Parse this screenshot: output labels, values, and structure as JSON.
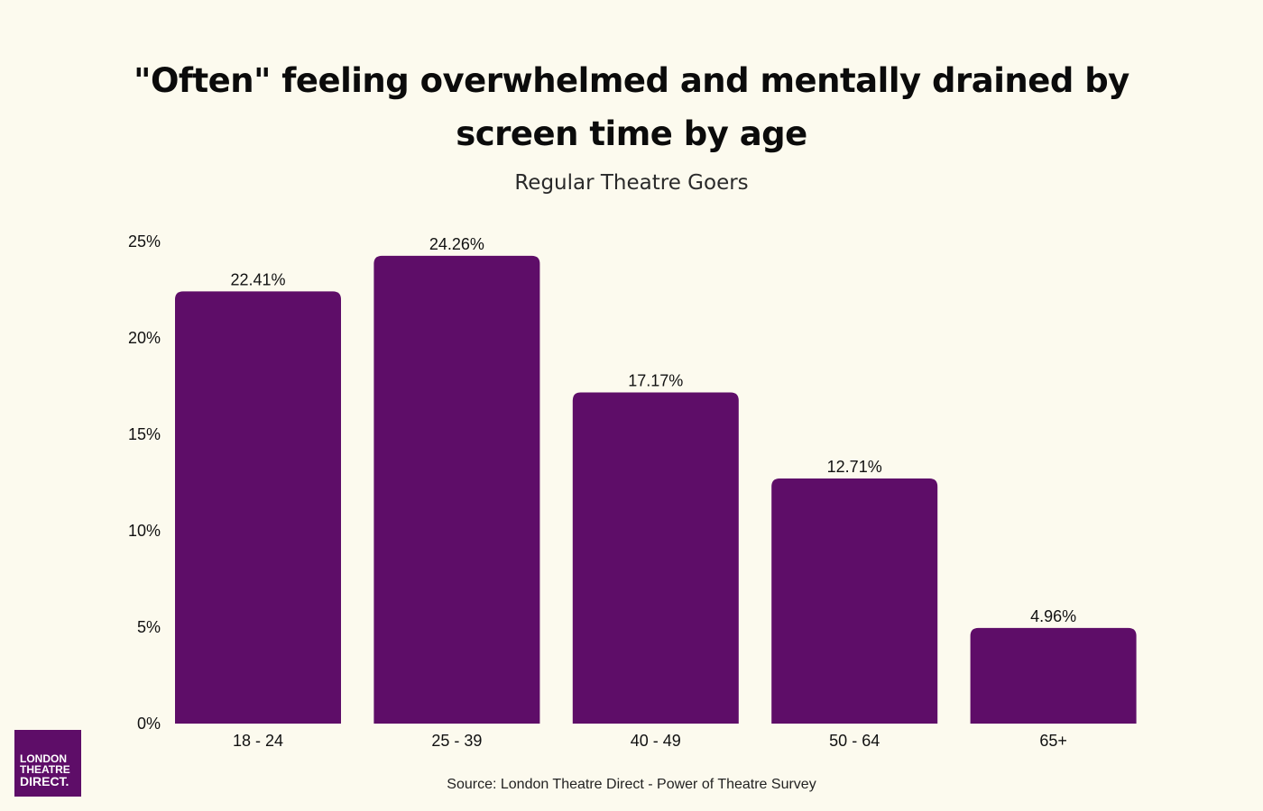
{
  "chart_data": {
    "type": "bar",
    "title": "\"Often\" feeling overwhelmed and mentally drained by screen time by age",
    "subtitle": "Regular Theatre Goers",
    "categories": [
      "18 - 24",
      "25 - 39",
      "40 - 49",
      "50 - 64",
      "65+"
    ],
    "values": [
      22.41,
      24.26,
      17.17,
      12.71,
      4.96
    ],
    "data_labels": [
      "22.41%",
      "24.26%",
      "17.17%",
      "12.71%",
      "4.96%"
    ],
    "yticks": [
      "0%",
      "5%",
      "10%",
      "15%",
      "20%",
      "25%"
    ],
    "ytick_values": [
      0,
      5,
      10,
      15,
      20,
      25
    ],
    "ylim": [
      0,
      25
    ],
    "xlabel": "",
    "ylabel": "",
    "grid": false,
    "bar_color": "#5e0d68"
  },
  "source": "Source: London Theatre Direct - Power of Theatre Survey",
  "logo": {
    "line1": "LONDON",
    "line2": "THEATRE",
    "line3": "DIRECT."
  },
  "colors": {
    "background": "#fcfaee",
    "accent": "#5e0d68"
  }
}
